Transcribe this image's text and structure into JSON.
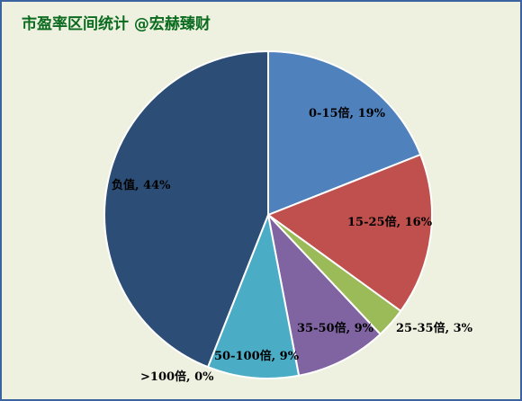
{
  "chart_data": {
    "type": "pie",
    "title": "市盈率区间统计 @宏赫臻财",
    "slices": [
      {
        "label": "0-15倍",
        "value": 19,
        "display": "0-15倍, 19%",
        "color": "#4f81bd",
        "label_place": "inside"
      },
      {
        "label": "15-25倍",
        "value": 16,
        "display": "15-25倍, 16%",
        "color": "#c0504d",
        "label_place": "inside"
      },
      {
        "label": "25-35倍",
        "value": 3,
        "display": "25-35倍, 3%",
        "color": "#9bbb59",
        "label_place": "outside"
      },
      {
        "label": "35-50倍",
        "value": 9,
        "display": "35-50倍, 9%",
        "color": "#8064a2",
        "label_place": "inside"
      },
      {
        "label": "50-100倍",
        "value": 9,
        "display": "50-100倍, 9%",
        "color": "#4bacc6",
        "label_place": "inside"
      },
      {
        "label": ">100倍",
        "value": 0,
        "display": ">100倍, 0%",
        "color": "#f79646",
        "label_place": "outside"
      },
      {
        "label": "负值",
        "value": 44,
        "display": "负值, 44%",
        "color": "#2c4d75",
        "label_place": "inside"
      }
    ]
  }
}
